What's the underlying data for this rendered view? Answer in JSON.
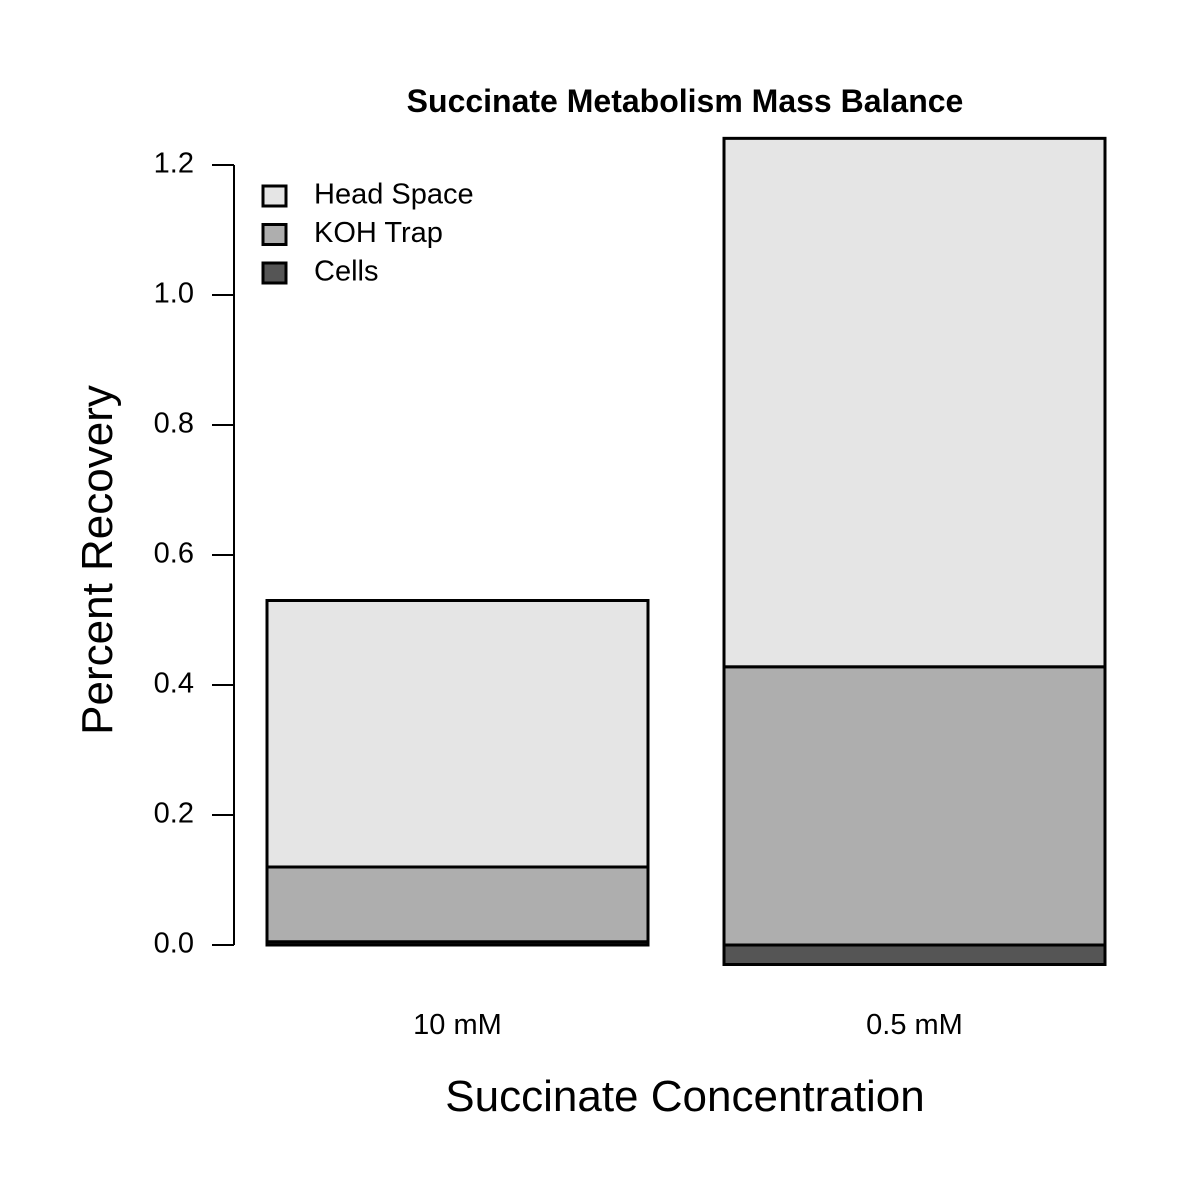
{
  "chart_data": {
    "type": "bar",
    "stacked": true,
    "title": "Succinate Metabolism Mass Balance",
    "xlabel": "Succinate Concentration",
    "ylabel": "Percent Recovery",
    "ylim": [
      0,
      1.2
    ],
    "yticks": [
      "0.0",
      "0.2",
      "0.4",
      "0.6",
      "0.8",
      "1.0",
      "1.2"
    ],
    "categories": [
      "10 mM",
      "0.5 mM"
    ],
    "series": [
      {
        "name": "Cells",
        "color": "#555555",
        "values": [
          0.005,
          -0.03
        ]
      },
      {
        "name": "KOH Trap",
        "color": "#aeaeae",
        "values": [
          0.115,
          0.428
        ]
      },
      {
        "name": "Head Space",
        "color": "#e5e5e5",
        "values": [
          0.41,
          0.813
        ]
      }
    ],
    "legend": {
      "position": "top-left",
      "order": [
        "Head Space",
        "KOH Trap",
        "Cells"
      ]
    },
    "grid": false
  }
}
